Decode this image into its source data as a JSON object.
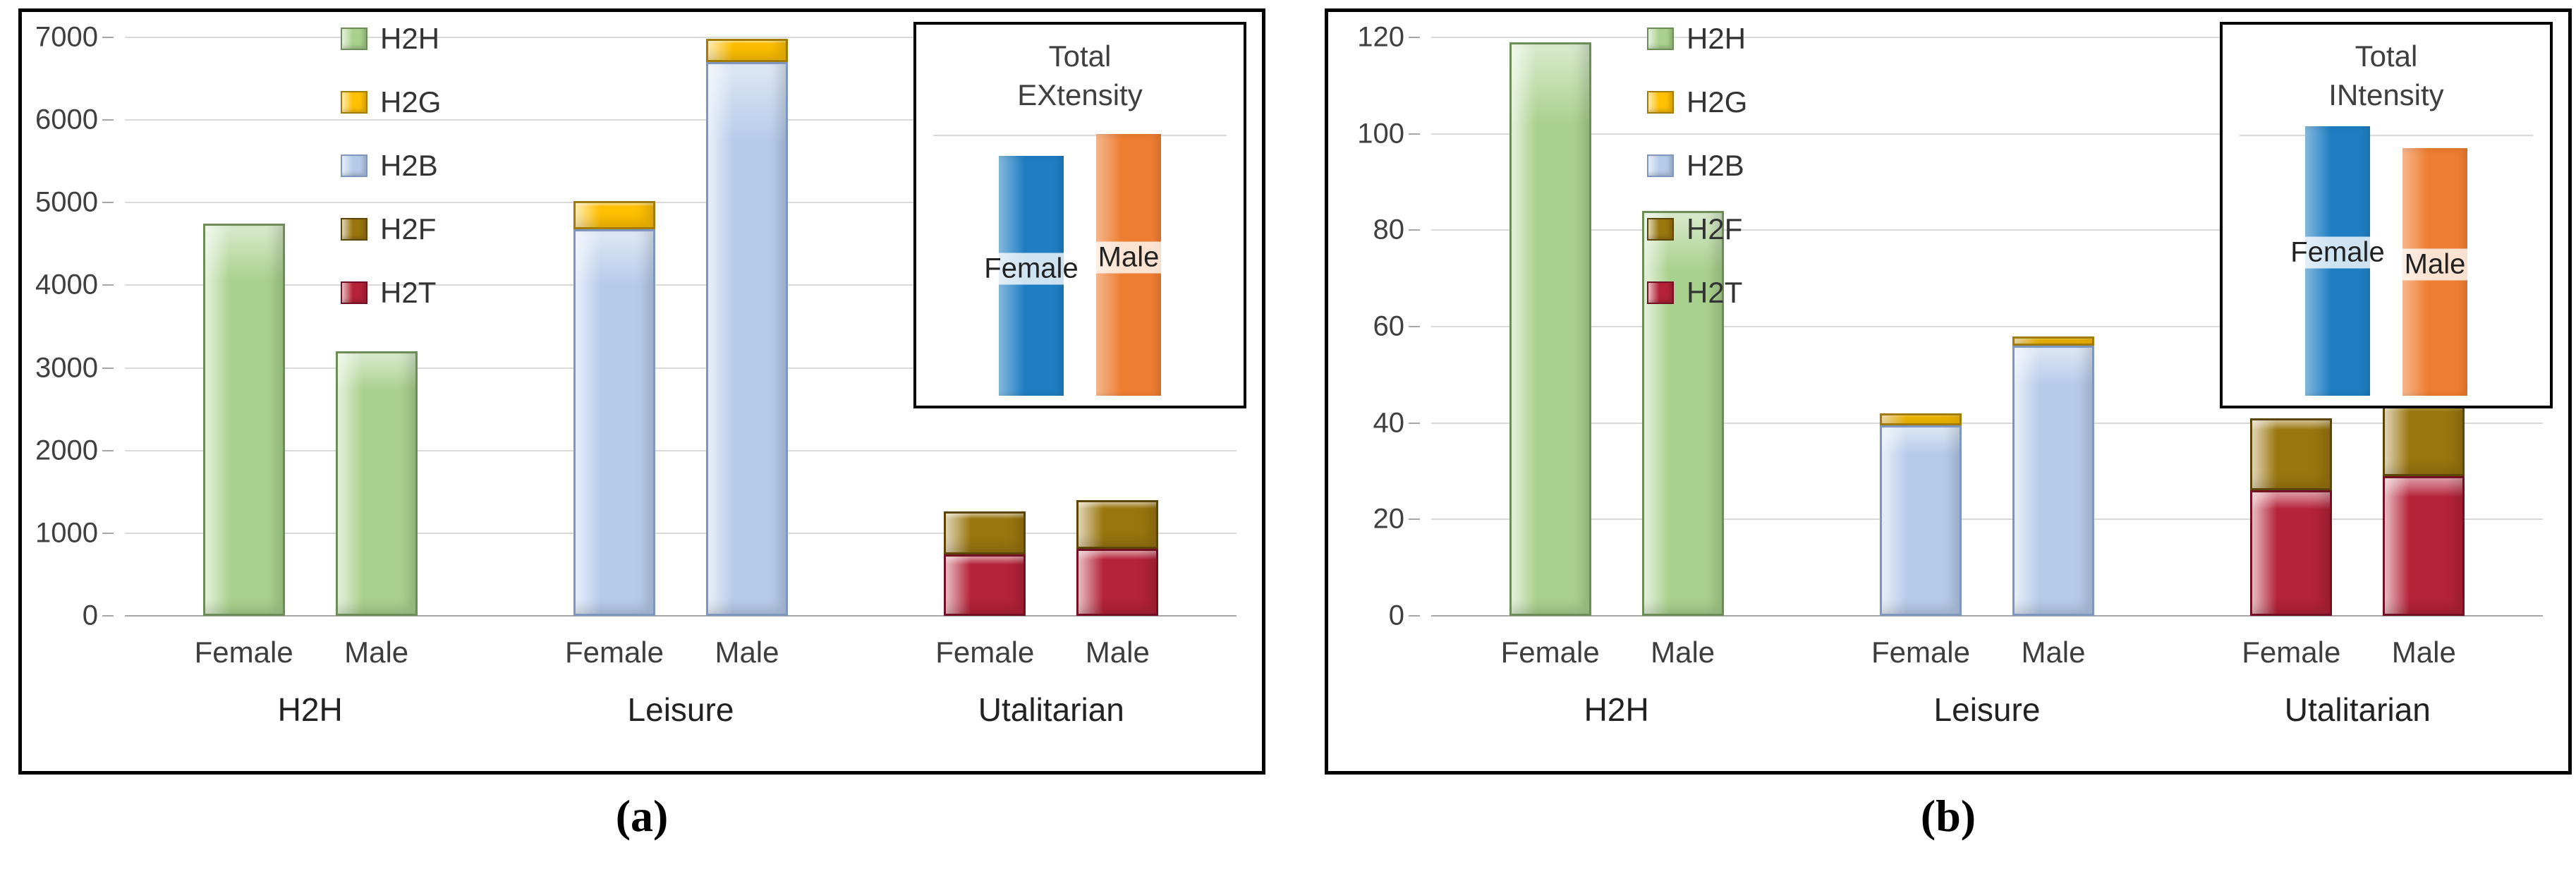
{
  "figure": {
    "captions": [
      "(a)",
      "(b)"
    ]
  },
  "series_colors": {
    "H2H": {
      "fill": "#a9d18e",
      "border": "#6d8d57"
    },
    "H2G": {
      "fill": "#ffc000",
      "border": "#a37b00"
    },
    "H2B": {
      "fill": "#b6cbea",
      "border": "#7d97c0"
    },
    "H2F": {
      "fill": "#9a760e",
      "border": "#5c4500"
    },
    "H2T": {
      "fill": "#b52338",
      "border": "#721024"
    }
  },
  "chart_data": [
    {
      "type": "bar",
      "subtype": "stacked-column-3d",
      "title": "",
      "y_axis": {
        "min": 0,
        "max": 7000,
        "step": 1000,
        "ticks": [
          "0",
          "1000",
          "2000",
          "3000",
          "4000",
          "5000",
          "6000",
          "7000"
        ]
      },
      "legend": {
        "position": "inside-top-left",
        "entries": [
          {
            "label": "H2H",
            "series": "H2H"
          },
          {
            "label": "H2G",
            "series": "H2G"
          },
          {
            "label": "H2B",
            "series": "H2B"
          },
          {
            "label": "H2F",
            "series": "H2F"
          },
          {
            "label": "H2T",
            "series": "H2T"
          }
        ]
      },
      "groups": [
        {
          "name": "H2H",
          "bars": [
            {
              "label": "Female",
              "segments": [
                {
                  "series": "H2H",
                  "value": 4750
                }
              ]
            },
            {
              "label": "Male",
              "segments": [
                {
                  "series": "H2H",
                  "value": 3200
                }
              ]
            }
          ]
        },
        {
          "name": "Leisure",
          "bars": [
            {
              "label": "Female",
              "segments": [
                {
                  "series": "H2B",
                  "value": 4680
                },
                {
                  "series": "H2G",
                  "value": 340
                }
              ]
            },
            {
              "label": "Male",
              "segments": [
                {
                  "series": "H2B",
                  "value": 6700
                },
                {
                  "series": "H2G",
                  "value": 280
                }
              ]
            }
          ]
        },
        {
          "name": "Utalitarian",
          "bars": [
            {
              "label": "Female",
              "segments": [
                {
                  "series": "H2T",
                  "value": 740
                },
                {
                  "series": "H2F",
                  "value": 520
                }
              ]
            },
            {
              "label": "Male",
              "segments": [
                {
                  "series": "H2T",
                  "value": 810
                },
                {
                  "series": "H2F",
                  "value": 590
                }
              ]
            }
          ]
        }
      ],
      "inset": {
        "title_line1": "Total",
        "title_line2": "EXtensity",
        "bars": [
          {
            "label": "Female",
            "color": "#1f7ec2",
            "rel_height": 0.88
          },
          {
            "label": "Male",
            "color": "#ed7d31",
            "rel_height": 0.96
          }
        ]
      }
    },
    {
      "type": "bar",
      "subtype": "stacked-column-3d",
      "title": "",
      "y_axis": {
        "min": 0,
        "max": 120,
        "step": 20,
        "ticks": [
          "0",
          "20",
          "40",
          "60",
          "80",
          "100",
          "120"
        ]
      },
      "legend": {
        "position": "inside-top-left",
        "entries": [
          {
            "label": "H2H",
            "series": "H2H"
          },
          {
            "label": "H2G",
            "series": "H2G"
          },
          {
            "label": "H2B",
            "series": "H2B"
          },
          {
            "label": "H2F",
            "series": "H2F"
          },
          {
            "label": "H2T",
            "series": "H2T"
          }
        ]
      },
      "groups": [
        {
          "name": "H2H",
          "bars": [
            {
              "label": "Female",
              "segments": [
                {
                  "series": "H2H",
                  "value": 119
                }
              ]
            },
            {
              "label": "Male",
              "segments": [
                {
                  "series": "H2H",
                  "value": 84
                }
              ]
            }
          ]
        },
        {
          "name": "Leisure",
          "bars": [
            {
              "label": "Female",
              "segments": [
                {
                  "series": "H2B",
                  "value": 39.5
                },
                {
                  "series": "H2G",
                  "value": 2.5
                }
              ]
            },
            {
              "label": "Male",
              "segments": [
                {
                  "series": "H2B",
                  "value": 56
                },
                {
                  "series": "H2G",
                  "value": 2
                }
              ]
            }
          ]
        },
        {
          "name": "Utalitarian",
          "bars": [
            {
              "label": "Female",
              "segments": [
                {
                  "series": "H2T",
                  "value": 26
                },
                {
                  "series": "H2F",
                  "value": 15
                }
              ]
            },
            {
              "label": "Male",
              "segments": [
                {
                  "series": "H2T",
                  "value": 29
                },
                {
                  "series": "H2F",
                  "value": 16
                }
              ]
            }
          ]
        }
      ],
      "inset": {
        "title_line1": "Total",
        "title_line2": "INtensity",
        "bars": [
          {
            "label": "Female",
            "color": "#1f7ec2",
            "rel_height": 0.99
          },
          {
            "label": "Male",
            "color": "#ed7d31",
            "rel_height": 0.91
          }
        ]
      }
    }
  ]
}
